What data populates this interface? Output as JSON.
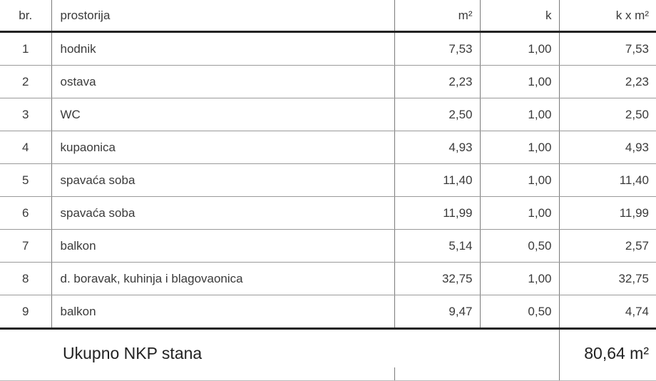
{
  "headers": {
    "no": "br.",
    "room": "prostorija",
    "area": "m²",
    "k": "k",
    "kxarea": "k x m²"
  },
  "rows": [
    {
      "no": "1",
      "room": "hodnik",
      "area": "7,53",
      "k": "1,00",
      "kxarea": "7,53"
    },
    {
      "no": "2",
      "room": "ostava",
      "area": "2,23",
      "k": "1,00",
      "kxarea": "2,23"
    },
    {
      "no": "3",
      "room": "WC",
      "area": "2,50",
      "k": "1,00",
      "kxarea": "2,50"
    },
    {
      "no": "4",
      "room": "kupaonica",
      "area": "4,93",
      "k": "1,00",
      "kxarea": "4,93"
    },
    {
      "no": "5",
      "room": "spavaća soba",
      "area": "11,40",
      "k": "1,00",
      "kxarea": "11,40"
    },
    {
      "no": "6",
      "room": "spavaća soba",
      "area": "11,99",
      "k": "1,00",
      "kxarea": "11,99"
    },
    {
      "no": "7",
      "room": "balkon",
      "area": "5,14",
      "k": "0,50",
      "kxarea": "2,57"
    },
    {
      "no": "8",
      "room": "d. boravak, kuhinja i blagovaonica",
      "area": "32,75",
      "k": "1,00",
      "kxarea": "32,75"
    },
    {
      "no": "9",
      "room": "balkon",
      "area": "9,47",
      "k": "0,50",
      "kxarea": "4,74"
    }
  ],
  "footer": {
    "label": "Ukupno NKP stana",
    "value": "80,64 m²"
  }
}
